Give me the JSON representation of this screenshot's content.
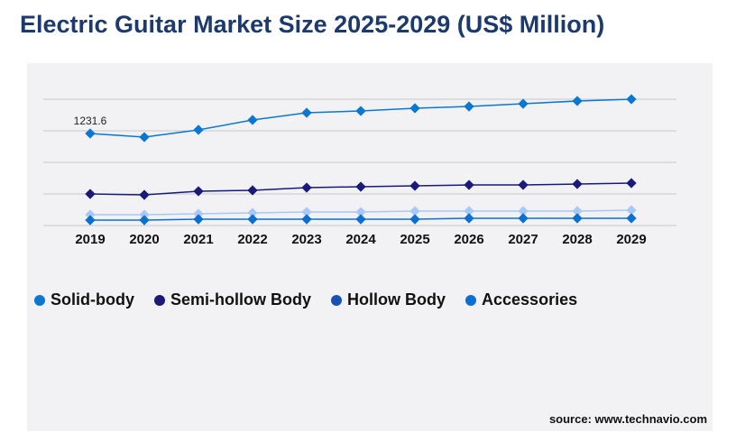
{
  "title": "Electric Guitar Market Size 2025-2029 (US$ Million)",
  "source": "source: www.technavio.com",
  "chart_data": {
    "type": "line",
    "title": "Electric Guitar Market Size 2025-2029 (US$ Million)",
    "categories": [
      "2019",
      "2020",
      "2021",
      "2022",
      "2023",
      "2024",
      "2025",
      "2026",
      "2027",
      "2028",
      "2029"
    ],
    "ylim": [
      0,
      1690
    ],
    "grid": true,
    "legend_position": "bottom",
    "series": [
      {
        "name": "Solid-body",
        "color": "#0a78d0",
        "values": [
          1231.6,
          1183,
          1280,
          1412,
          1509,
          1533,
          1569,
          1593,
          1630,
          1666,
          1690
        ]
      },
      {
        "name": "Semi-hollow Body",
        "color": "#1a1a78",
        "values": [
          422,
          410,
          459,
          471,
          507,
          519,
          531,
          543,
          543,
          555,
          567
        ]
      },
      {
        "name": "Hollow Body",
        "color": "#a8c8f8",
        "legend_color": "#1a4fb5",
        "values": [
          145,
          145,
          157,
          169,
          181,
          181,
          193,
          193,
          193,
          193,
          205
        ]
      },
      {
        "name": "Accessories",
        "color": "#0a6fd0",
        "values": [
          72,
          72,
          84,
          84,
          84,
          84,
          84,
          97,
          97,
          97,
          97
        ]
      }
    ],
    "annotations": [
      {
        "series": "Solid-body",
        "category": "2019",
        "label": "1231.6"
      }
    ]
  }
}
